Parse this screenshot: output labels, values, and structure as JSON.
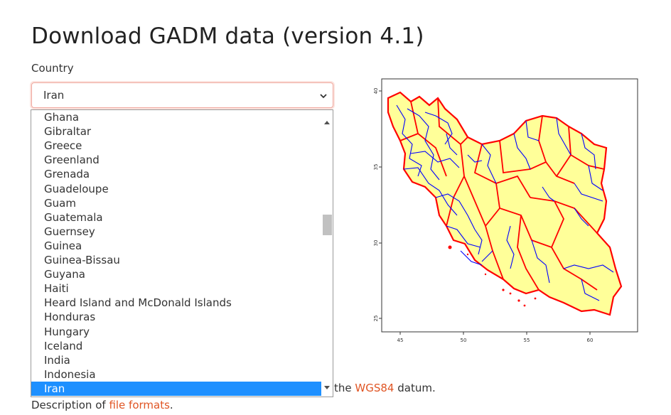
{
  "page": {
    "title": "Download GADM data (version 4.1)"
  },
  "country_selector": {
    "label": "Country",
    "selected_value": "Iran",
    "chevron_icon": "chevron-down-icon"
  },
  "dropdown": {
    "options": [
      "Ghana",
      "Gibraltar",
      "Greece",
      "Greenland",
      "Grenada",
      "Guadeloupe",
      "Guam",
      "Guatemala",
      "Guernsey",
      "Guinea",
      "Guinea-Bissau",
      "Guyana",
      "Haiti",
      "Heard Island and McDonald Islands",
      "Honduras",
      "Hungary",
      "Iceland",
      "India",
      "Indonesia",
      "Iran"
    ],
    "selected_index": 19,
    "highlight_color": "#1e90ff"
  },
  "footer": {
    "datum_prefix": "the",
    "datum_link": "WGS84",
    "datum_suffix": "datum.",
    "formats_prefix": "Description of",
    "formats_link": "file formats",
    "formats_suffix": "."
  },
  "map": {
    "x_ticks": [
      "45",
      "50",
      "55",
      "60"
    ],
    "y_ticks": [
      "40",
      "35",
      "30",
      "25"
    ],
    "fill_color": "#ffff99",
    "province_border_color": "#ff0000",
    "district_border_color": "#0000ff"
  },
  "colors": {
    "link": "#e05524",
    "focus_border": "#f0a9a0"
  }
}
